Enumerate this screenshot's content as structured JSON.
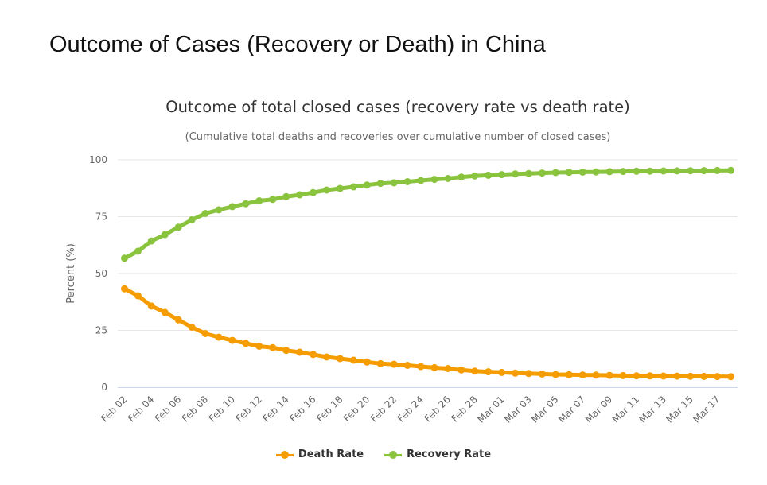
{
  "page": {
    "title": "Outcome of Cases (Recovery or Death) in China"
  },
  "chart_data": {
    "type": "line",
    "title": "Outcome of total closed cases (recovery rate vs death rate)",
    "subtitle": "(Cumulative total deaths and recoveries over cumulative number of closed cases)",
    "ylabel": "Percent (%)",
    "xlabel": "",
    "ylim": [
      0,
      100
    ],
    "yticks": [
      0,
      25,
      50,
      75,
      100
    ],
    "grid": true,
    "legend_position": "bottom-center",
    "categories": [
      "Feb 02",
      "Feb 03",
      "Feb 04",
      "Feb 05",
      "Feb 06",
      "Feb 07",
      "Feb 08",
      "Feb 09",
      "Feb 10",
      "Feb 11",
      "Feb 12",
      "Feb 13",
      "Feb 14",
      "Feb 15",
      "Feb 16",
      "Feb 17",
      "Feb 18",
      "Feb 19",
      "Feb 20",
      "Feb 21",
      "Feb 22",
      "Feb 23",
      "Feb 24",
      "Feb 25",
      "Feb 26",
      "Feb 27",
      "Feb 28",
      "Feb 29",
      "Mar 01",
      "Mar 02",
      "Mar 03",
      "Mar 04",
      "Mar 05",
      "Mar 06",
      "Mar 07",
      "Mar 08",
      "Mar 09",
      "Mar 10",
      "Mar 11",
      "Mar 12",
      "Mar 13",
      "Mar 14",
      "Mar 15",
      "Mar 16",
      "Mar 17",
      "Mar 18"
    ],
    "tick_labels": [
      "Feb 02",
      "Feb 04",
      "Feb 06",
      "Feb 08",
      "Feb 10",
      "Feb 12",
      "Feb 14",
      "Feb 16",
      "Feb 18",
      "Feb 20",
      "Feb 22",
      "Feb 24",
      "Feb 26",
      "Feb 28",
      "Mar 01",
      "Mar 03",
      "Mar 05",
      "Mar 07",
      "Mar 09",
      "Mar 11",
      "Mar 13",
      "Mar 15",
      "Mar 17"
    ],
    "series": [
      {
        "name": "Death Rate",
        "color": "#f59c00",
        "values": [
          43.3,
          40.2,
          35.7,
          32.9,
          29.6,
          26.4,
          23.6,
          22.0,
          20.6,
          19.3,
          18.0,
          17.4,
          16.2,
          15.4,
          14.4,
          13.3,
          12.6,
          11.9,
          11.1,
          10.4,
          10.1,
          9.6,
          9.1,
          8.6,
          8.2,
          7.6,
          7.1,
          6.8,
          6.5,
          6.2,
          6.0,
          5.8,
          5.6,
          5.5,
          5.4,
          5.3,
          5.2,
          5.1,
          5.0,
          4.95,
          4.9,
          4.85,
          4.8,
          4.75,
          4.7,
          4.65
        ]
      },
      {
        "name": "Recovery Rate",
        "color": "#8ac33e",
        "values": [
          56.7,
          59.8,
          64.3,
          67.1,
          70.4,
          73.6,
          76.4,
          78.0,
          79.4,
          80.7,
          82.0,
          82.6,
          83.8,
          84.6,
          85.6,
          86.7,
          87.4,
          88.1,
          88.9,
          89.6,
          89.9,
          90.4,
          90.9,
          91.4,
          91.8,
          92.4,
          92.9,
          93.2,
          93.5,
          93.8,
          94.0,
          94.2,
          94.4,
          94.5,
          94.6,
          94.7,
          94.8,
          94.9,
          95.0,
          95.05,
          95.1,
          95.15,
          95.2,
          95.25,
          95.3,
          95.35
        ]
      }
    ]
  }
}
